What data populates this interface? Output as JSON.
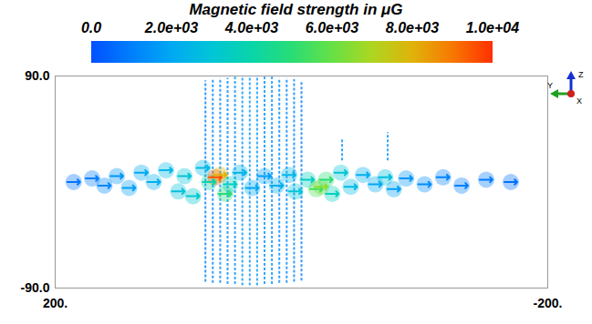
{
  "chart_data": {
    "type": "vector_field",
    "title": "Magnetic field strength in μG",
    "xlim": [
      200,
      -200
    ],
    "xticks": [
      {
        "value": 200,
        "label": "200."
      },
      {
        "value": -200,
        "label": "-200."
      }
    ],
    "ylim": [
      -90,
      90
    ],
    "yticks": [
      {
        "value": 90,
        "label": "90.0"
      },
      {
        "value": -90,
        "label": "-90.0"
      }
    ],
    "colorbar": {
      "range": [
        0,
        10000
      ],
      "ticks": [
        {
          "value": 0,
          "label": "0.0"
        },
        {
          "value": 2000,
          "label": "2.0e+03"
        },
        {
          "value": 4000,
          "label": "4.0e+03"
        },
        {
          "value": 6000,
          "label": "6.0e+03"
        },
        {
          "value": 8000,
          "label": "8.0e+03"
        },
        {
          "value": 10000,
          "label": "1.0e+04"
        }
      ]
    },
    "axis_triad": [
      "Z",
      "Y",
      "X"
    ],
    "vertical_field_lines": {
      "y": [
        78,
        72,
        66,
        60,
        54,
        48,
        42,
        36,
        30,
        24,
        18,
        12,
        6,
        0,
        -33,
        -70
      ],
      "z1": [
        -85,
        -86,
        -86,
        -87,
        -87,
        -88,
        -88,
        -88,
        -87,
        -87,
        -86,
        -86,
        -85,
        -84,
        18,
        18
      ],
      "z2": [
        86,
        87,
        88,
        88,
        89,
        90,
        90,
        90,
        89,
        89,
        88,
        88,
        87,
        86,
        36,
        42
      ],
      "strength": [
        1000,
        1100,
        1200,
        1300,
        1400,
        1500,
        1600,
        1600,
        1500,
        1400,
        1300,
        1200,
        1100,
        1000,
        1500,
        1500
      ]
    },
    "disk_vectors": {
      "y": [
        185,
        170,
        160,
        150,
        140,
        130,
        120,
        110,
        100,
        95,
        88,
        80,
        75,
        70,
        66,
        62,
        58,
        50,
        40,
        30,
        20,
        10,
        5,
        -5,
        -12,
        -16,
        -20,
        -25,
        -32,
        -40,
        -50,
        -60,
        -68,
        -75,
        -85,
        -100,
        -115,
        -130,
        -150,
        -170
      ],
      "z": [
        0,
        3,
        -3,
        5,
        -5,
        8,
        0,
        10,
        -8,
        5,
        -12,
        12,
        0,
        4,
        6,
        -10,
        -2,
        8,
        -5,
        5,
        -3,
        6,
        -8,
        2,
        -6,
        -4,
        2,
        -10,
        8,
        -4,
        6,
        -2,
        4,
        -6,
        3,
        -2,
        4,
        -3,
        2,
        0
      ],
      "strength": [
        800,
        1000,
        1200,
        1500,
        1800,
        2000,
        2200,
        2500,
        2800,
        3000,
        3200,
        2600,
        4000,
        9500,
        8000,
        5000,
        3500,
        2400,
        2000,
        1800,
        2200,
        2500,
        3000,
        3500,
        5500,
        6500,
        5000,
        3600,
        3000,
        2600,
        2200,
        2000,
        2800,
        1800,
        1500,
        1300,
        1100,
        1000,
        900,
        700
      ]
    }
  }
}
